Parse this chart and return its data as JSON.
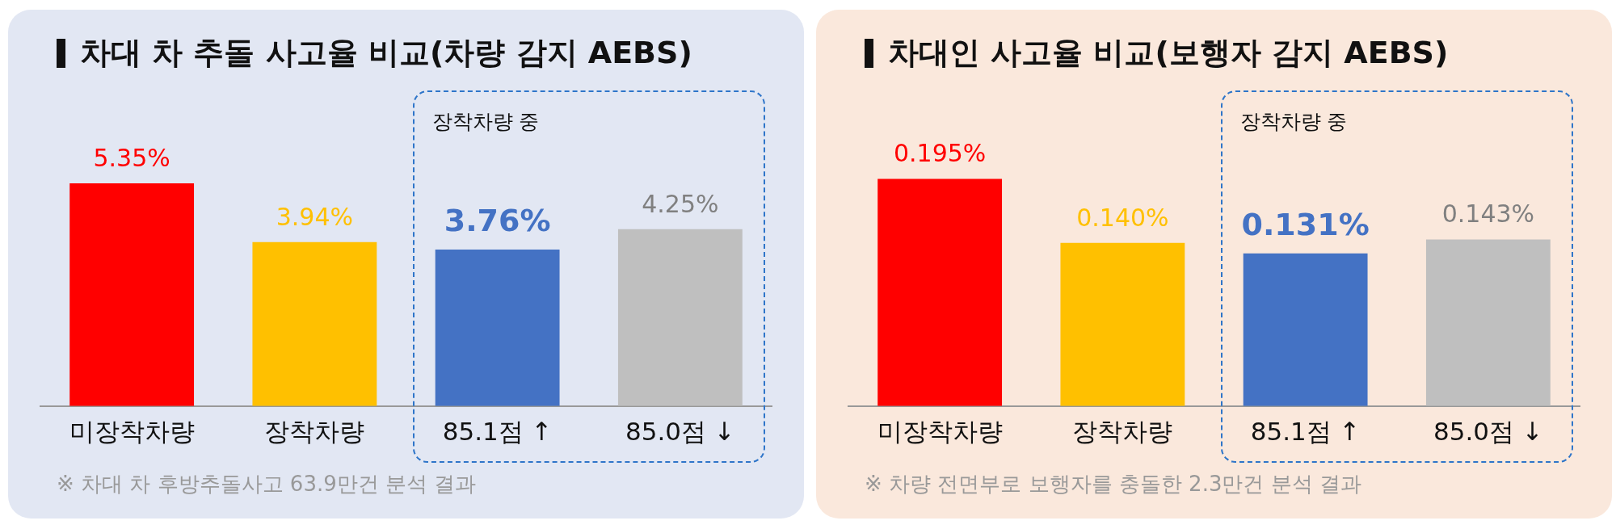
{
  "chart_data": [
    {
      "type": "bar",
      "title": "차대 차 추돌 사고율 비교(차량 감지 AEBS)",
      "categories": [
        "미장착차량",
        "장착차량",
        "85.1점 ↑",
        "85.0점 ↓"
      ],
      "values": [
        5.35,
        3.94,
        3.76,
        4.25
      ],
      "colors": [
        "#ff0000",
        "#ffc000",
        "#4472c4",
        "#bfbfbf"
      ],
      "value_labels": [
        "5.35%",
        "3.94%",
        "3.76%",
        "4.25%"
      ],
      "grid": false,
      "legend": false,
      "tick_labels": "x",
      "annotations": [
        "장착차량 중",
        "※ 차대 차 후방추돌사고 63.9만건 분석 결과"
      ]
    },
    {
      "type": "bar",
      "title": "차대인 사고율 비교(보행자 감지 AEBS)",
      "categories": [
        "미장착차량",
        "장착차량",
        "85.1점 ↑",
        "85.0점 ↓"
      ],
      "values": [
        0.195,
        0.14,
        0.131,
        0.143
      ],
      "colors": [
        "#ff0000",
        "#ffc000",
        "#4472c4",
        "#bfbfbf"
      ],
      "value_labels": [
        "0.195%",
        "0.140%",
        "0.131%",
        "0.143%"
      ],
      "grid": false,
      "legend": false,
      "tick_labels": "x",
      "annotations": [
        "장착차량 중",
        "※ 차량 전면부로 보행자를 충돌한 2.3만건 분석 결과"
      ]
    }
  ]
}
